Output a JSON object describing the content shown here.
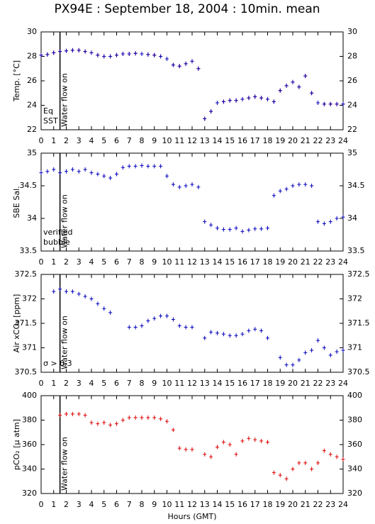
{
  "title": "PX94E : September 18, 2004 : 10min. mean",
  "chart_data": [
    {
      "type": "scatter",
      "ylabel": "Temp. [°C]",
      "xlim": [
        0,
        24
      ],
      "xticks": [
        0,
        1,
        2,
        3,
        4,
        5,
        6,
        7,
        8,
        9,
        10,
        11,
        12,
        13,
        14,
        15,
        16,
        17,
        18,
        19,
        20,
        21,
        22,
        23,
        24
      ],
      "ylim": [
        22,
        30
      ],
      "yticks": [
        22,
        24,
        26,
        28,
        30
      ],
      "annotation": {
        "text": "Water flow on",
        "x": 1.5
      },
      "x": [
        0,
        0.5,
        1,
        1.5,
        2,
        2.5,
        3,
        3.5,
        4,
        4.5,
        5,
        5.5,
        6,
        6.5,
        7,
        7.5,
        8,
        8.5,
        9,
        9.5,
        10,
        10.5,
        11,
        11.5,
        12,
        12.5,
        13,
        13.5,
        14,
        14.5,
        15,
        15.5,
        16,
        16.5,
        17,
        17.5,
        18,
        18.5,
        19,
        19.5,
        20,
        20.5,
        21,
        21.5,
        22,
        22.5,
        23,
        23.5,
        24
      ],
      "series": [
        {
          "name": "Eq",
          "color": "#dd0000",
          "values": [
            28.1,
            28.15,
            28.3,
            28.4,
            28.45,
            28.5,
            28.5,
            28.4,
            28.3,
            28.1,
            28.0,
            28.0,
            28.1,
            28.2,
            28.2,
            28.25,
            28.2,
            28.15,
            28.1,
            28.0,
            27.8,
            27.3,
            27.2,
            27.4,
            27.6,
            27.0,
            22.9,
            23.5,
            24.2,
            24.3,
            24.4,
            24.4,
            24.5,
            24.6,
            24.7,
            24.6,
            24.5,
            24.3,
            25.2,
            25.6,
            25.9,
            25.5,
            26.4,
            25.0,
            24.2,
            24.1,
            24.1,
            24.1,
            24.1
          ]
        },
        {
          "name": "SST",
          "color": "#0000bb",
          "values": [
            28.1,
            28.15,
            28.3,
            28.4,
            28.45,
            28.5,
            28.5,
            28.4,
            28.3,
            28.1,
            28.0,
            28.0,
            28.1,
            28.2,
            28.2,
            28.25,
            28.2,
            28.15,
            28.1,
            28.0,
            27.8,
            27.3,
            27.2,
            27.4,
            27.6,
            27.0,
            22.9,
            23.5,
            24.2,
            24.3,
            24.4,
            24.4,
            24.5,
            24.6,
            24.7,
            24.6,
            24.5,
            24.3,
            25.2,
            25.6,
            25.9,
            25.5,
            26.4,
            25.0,
            24.2,
            24.1,
            24.1,
            24.1,
            24.1
          ]
        }
      ]
    },
    {
      "type": "scatter",
      "ylabel": "SBE Sal.",
      "xlim": [
        0,
        24
      ],
      "xticks": [
        0,
        1,
        2,
        3,
        4,
        5,
        6,
        7,
        8,
        9,
        10,
        11,
        12,
        13,
        14,
        15,
        16,
        17,
        18,
        19,
        20,
        21,
        22,
        23,
        24
      ],
      "ylim": [
        33.5,
        35
      ],
      "yticks": [
        33.5,
        34,
        34.5,
        35
      ],
      "annotation": {
        "text": "Water flow on",
        "x": 1.5
      },
      "x": [
        0,
        0.5,
        1,
        1.5,
        2,
        2.5,
        3,
        3.5,
        4,
        4.5,
        5,
        5.5,
        6,
        6.5,
        7,
        7.5,
        8,
        8.5,
        9,
        9.5,
        10,
        10.5,
        11,
        11.5,
        12,
        12.5,
        13,
        13.5,
        14,
        14.5,
        15,
        15.5,
        16,
        16.5,
        17,
        17.5,
        18,
        18.5,
        19,
        19.5,
        20,
        20.5,
        21,
        21.5,
        22,
        22.5,
        23,
        23.5,
        24
      ],
      "series": [
        {
          "name": "verified",
          "color": "#0000bb",
          "values": [
            34.7,
            34.72,
            34.75,
            34.7,
            34.72,
            34.75,
            34.72,
            34.75,
            34.7,
            34.68,
            34.65,
            34.62,
            34.68,
            34.78,
            34.8,
            34.8,
            34.81,
            34.8,
            34.8,
            34.8,
            34.65,
            34.52,
            34.48,
            34.5,
            34.52,
            34.48,
            33.95,
            33.9,
            33.85,
            33.83,
            33.83,
            33.85,
            33.8,
            33.82,
            33.84,
            33.84,
            33.85,
            34.35,
            34.42,
            34.45,
            34.5,
            34.52,
            34.52,
            34.5,
            33.95,
            33.92,
            33.95,
            34.0,
            34.02
          ]
        },
        {
          "name": "bubble",
          "color": "#cc00cc",
          "values": [
            null,
            null,
            null,
            null,
            null,
            null,
            null,
            null,
            null,
            null,
            null,
            null,
            null,
            null,
            null,
            null,
            null,
            null,
            null,
            null,
            null,
            null,
            null,
            null,
            null,
            null,
            null,
            null,
            null,
            null,
            null,
            null,
            null,
            null,
            null,
            null,
            null,
            null,
            null,
            null,
            null,
            null,
            null,
            null,
            null,
            null,
            null,
            null,
            null
          ]
        }
      ]
    },
    {
      "type": "scatter",
      "ylabel": "Air xCO₂ [ppm]",
      "xlim": [
        0,
        24
      ],
      "xticks": [
        0,
        1,
        2,
        3,
        4,
        5,
        6,
        7,
        8,
        9,
        10,
        11,
        12,
        13,
        14,
        15,
        16,
        17,
        18,
        19,
        20,
        21,
        22,
        23,
        24
      ],
      "ylim": [
        370.5,
        372.5
      ],
      "yticks": [
        370.5,
        371,
        371.5,
        372,
        372.5
      ],
      "annotation": {
        "text": "Water flow on",
        "x": 1.5
      },
      "x": [
        0,
        0.5,
        1,
        1.5,
        2,
        2.5,
        3,
        3.5,
        4,
        4.5,
        5,
        5.5,
        6,
        6.5,
        7,
        7.5,
        8,
        8.5,
        9,
        9.5,
        10,
        10.5,
        11,
        11.5,
        12,
        12.5,
        13,
        13.5,
        14,
        14.5,
        15,
        15.5,
        16,
        16.5,
        17,
        17.5,
        18,
        18.5,
        19,
        19.5,
        20,
        20.5,
        21,
        21.5,
        22,
        22.5,
        23,
        23.5,
        24
      ],
      "series": [
        {
          "color": "#0000bb",
          "values": [
            null,
            null,
            372.15,
            372.2,
            372.15,
            372.15,
            372.1,
            372.05,
            372.0,
            371.9,
            371.8,
            371.72,
            null,
            null,
            371.42,
            371.42,
            371.45,
            371.55,
            371.6,
            371.65,
            371.65,
            371.58,
            371.45,
            371.42,
            371.42,
            null,
            371.2,
            371.32,
            371.3,
            371.28,
            371.25,
            371.25,
            371.28,
            371.35,
            371.38,
            371.35,
            371.2,
            null,
            370.8,
            370.65,
            370.65,
            370.75,
            370.9,
            370.95,
            371.15,
            371.0,
            370.85,
            370.92,
            370.95
          ]
        },
        {
          "name": "σ > 0.3",
          "color": "#cc00cc",
          "values": [
            null,
            null,
            null,
            null,
            null,
            null,
            null,
            null,
            null,
            null,
            null,
            null,
            null,
            null,
            null,
            null,
            null,
            null,
            null,
            null,
            null,
            null,
            null,
            null,
            null,
            null,
            null,
            null,
            null,
            null,
            null,
            null,
            null,
            null,
            null,
            null,
            null,
            null,
            null,
            null,
            null,
            null,
            null,
            null,
            null,
            null,
            null,
            null,
            null
          ]
        }
      ]
    },
    {
      "type": "scatter",
      "ylabel": "pCO₂ [μ atm]",
      "xlabel": "Hours (GMT)",
      "xlim": [
        0,
        24
      ],
      "xticks": [
        0,
        1,
        2,
        3,
        4,
        5,
        6,
        7,
        8,
        9,
        10,
        11,
        12,
        13,
        14,
        15,
        16,
        17,
        18,
        19,
        20,
        21,
        22,
        23,
        24
      ],
      "ylim": [
        320,
        400
      ],
      "yticks": [
        320,
        340,
        360,
        380,
        400
      ],
      "annotation": {
        "text": "Water flow on",
        "x": 1.5
      },
      "x": [
        0,
        0.5,
        1,
        1.5,
        2,
        2.5,
        3,
        3.5,
        4,
        4.5,
        5,
        5.5,
        6,
        6.5,
        7,
        7.5,
        8,
        8.5,
        9,
        9.5,
        10,
        10.5,
        11,
        11.5,
        12,
        12.5,
        13,
        13.5,
        14,
        14.5,
        15,
        15.5,
        16,
        16.5,
        17,
        17.5,
        18,
        18.5,
        19,
        19.5,
        20,
        20.5,
        21,
        21.5,
        22,
        22.5,
        23,
        23.5,
        24
      ],
      "series": [
        {
          "color": "#dd0000",
          "values": [
            null,
            null,
            null,
            384,
            385,
            385,
            385,
            384,
            378,
            377,
            378,
            376,
            377,
            380,
            382,
            382,
            382,
            382,
            382,
            381,
            379,
            372,
            357,
            356,
            356,
            null,
            352,
            350,
            358,
            362,
            360,
            352,
            363,
            365,
            364,
            363,
            362,
            337,
            335,
            332,
            340,
            345,
            345,
            340,
            345,
            355,
            352,
            350,
            348
          ]
        }
      ]
    }
  ]
}
